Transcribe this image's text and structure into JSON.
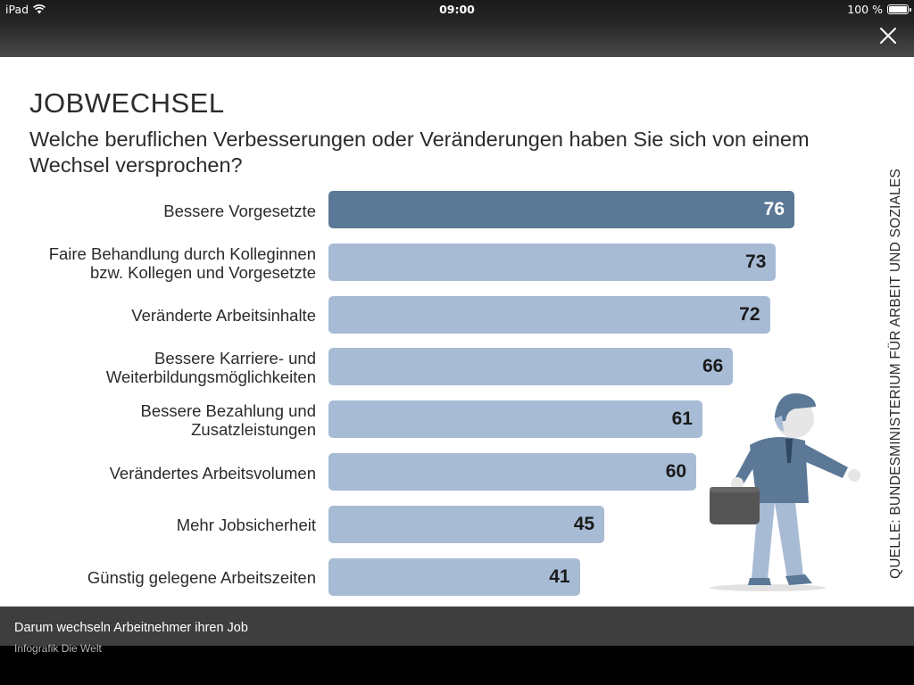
{
  "status_bar": {
    "device": "iPad",
    "time": "09:00",
    "battery": "100 %"
  },
  "infographic": {
    "title": "JOBWECHSEL",
    "subtitle": "Welche beruflichen Verbesserungen oder Veränderungen haben Sie sich von einem Wechsel versprochen?",
    "source": "QUELLE: BUNDESMINISTERIUM FÜR ARBEIT UND SOZIALES"
  },
  "chart_data": {
    "type": "bar",
    "orientation": "horizontal",
    "title": "JOBWECHSEL",
    "subtitle": "Welche beruflichen Verbesserungen oder Veränderungen haben Sie sich von einem Wechsel versprochen?",
    "categories": [
      "Bessere Vorgesetzte",
      "Faire Behandlung durch Kolleginnen\nbzw. Kollegen und Vorgesetzte",
      "Veränderte Arbeitsinhalte",
      "Bessere Karriere- und\nWeiterbildungsmöglichkeiten",
      "Bessere Bezahlung und\nZusatzleistungen",
      "Verändertes Arbeitsvolumen",
      "Mehr Jobsicherheit",
      "Günstig gelegene Arbeitszeiten"
    ],
    "values": [
      76,
      73,
      72,
      66,
      61,
      60,
      45,
      41
    ],
    "highlight_color": "#5b7896",
    "bar_color": "#a7bbd5",
    "highlight_text_color": "#ffffff",
    "value_text_color": "#1a1a1a",
    "xlim": [
      0,
      76
    ],
    "grid": false,
    "legend": "none"
  },
  "caption": {
    "title": "Darum wechseln Arbeitnehmer ihren Job",
    "credit": "Infografik Die Welt"
  },
  "icons": {
    "close": "close-icon",
    "wifi": "wifi-icon",
    "battery": "battery-icon"
  }
}
